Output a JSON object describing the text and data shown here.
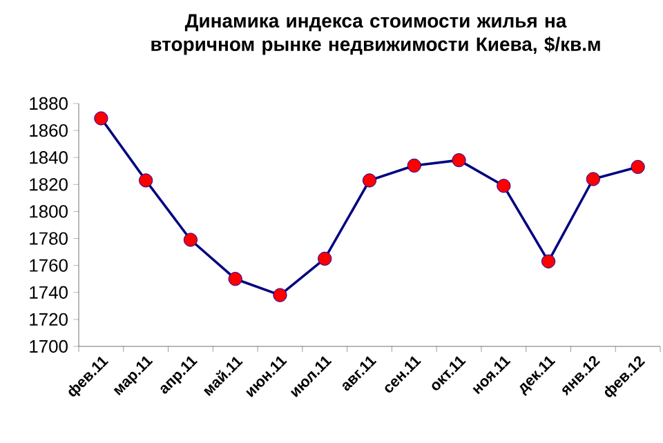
{
  "chart_data": {
    "type": "line",
    "title": "Динамика индекса стоимости жилья на вторичном рынке недвижимости Киева, $/кв.м",
    "categories": [
      "фев.11",
      "мар.11",
      "апр.11",
      "май.11",
      "июн.11",
      "июл.11",
      "авг.11",
      "сен.11",
      "окт.11",
      "ноя.11",
      "дек.11",
      "янв.12",
      "фев.12"
    ],
    "series": [
      {
        "color": "#000080",
        "values": [
          1869,
          1823,
          1779,
          1750,
          1738,
          1765,
          1823,
          1834,
          1838,
          1819,
          1763,
          1824,
          1833
        ]
      }
    ],
    "marker": "circle",
    "line_style": "solid",
    "grid": false,
    "ylim": [
      1700,
      1880
    ],
    "yticks": [
      1700,
      1720,
      1740,
      1760,
      1780,
      1800,
      1820,
      1840,
      1860,
      1880
    ]
  }
}
